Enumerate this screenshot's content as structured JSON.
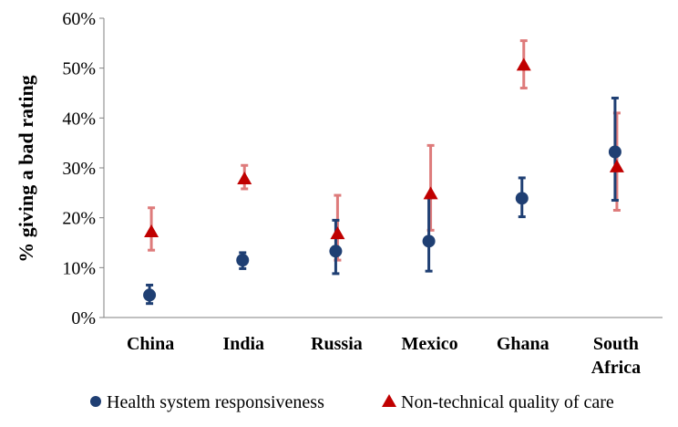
{
  "chart_data": {
    "type": "scatter",
    "ylabel": "% giving a bad rating",
    "categories": [
      "China",
      "India",
      "Russia",
      "Mexico",
      "Ghana",
      "South Africa"
    ],
    "category_lines": [
      [
        "China"
      ],
      [
        "India"
      ],
      [
        "Russia"
      ],
      [
        "Mexico"
      ],
      [
        "Ghana"
      ],
      [
        "South",
        "Africa"
      ]
    ],
    "ylim": [
      0,
      60
    ],
    "yticks": [
      0,
      10,
      20,
      30,
      40,
      50,
      60
    ],
    "ytick_labels": [
      "0%",
      "10%",
      "20%",
      "30%",
      "40%",
      "50%",
      "60%"
    ],
    "grid": false,
    "legend_position": "bottom",
    "series": [
      {
        "name": "Health system responsiveness",
        "marker": "circle",
        "color": "#1f3f73",
        "error_color": "#1f3f73",
        "values": [
          4.5,
          11.5,
          13.3,
          15.3,
          23.9,
          33.2
        ],
        "lower": [
          2.8,
          9.8,
          8.8,
          9.3,
          20.2,
          23.5
        ],
        "upper": [
          6.5,
          13.0,
          19.5,
          24.0,
          28.0,
          44.0
        ]
      },
      {
        "name": "Non-technical quality of care",
        "marker": "triangle",
        "color": "#c00000",
        "error_color": "#de7b7b",
        "values": [
          17.2,
          27.8,
          16.8,
          24.8,
          50.6,
          30.2
        ],
        "lower": [
          13.5,
          25.8,
          11.5,
          17.5,
          46.0,
          21.5
        ],
        "upper": [
          22.0,
          30.5,
          24.5,
          34.5,
          55.5,
          41.0
        ]
      }
    ]
  }
}
